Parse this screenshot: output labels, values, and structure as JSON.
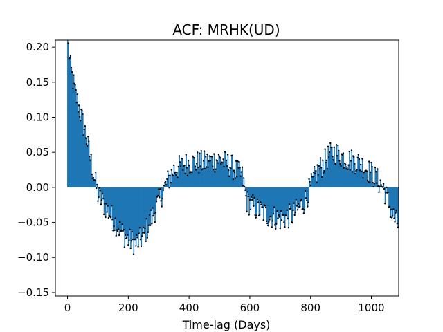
{
  "chart_data": {
    "type": "bar",
    "title": "ACF: MRHK(UD)",
    "xlabel": "Time-lag (Days)",
    "ylabel": "",
    "xlim": [
      -40,
      1090
    ],
    "ylim": [
      -0.155,
      0.21
    ],
    "x_ticks": [
      0,
      200,
      400,
      600,
      800,
      1000
    ],
    "y_ticks": [
      -0.15,
      -0.1,
      -0.05,
      0.0,
      0.05,
      0.1,
      0.15,
      0.2
    ],
    "x_tick_labels": [
      "0",
      "200",
      "400",
      "600",
      "800",
      "1000"
    ],
    "y_tick_labels": [
      "−0.15",
      "−0.10",
      "−0.05",
      "0.00",
      "0.05",
      "0.10",
      "0.15",
      "0.20"
    ],
    "grid": false,
    "legend": "none",
    "bar_color": "#1f77b4",
    "marker_color": "#000000",
    "lag_step_days": 2.5,
    "lag_start": 0,
    "lag_end": 1090,
    "envelope": [
      [
        0,
        0.21
      ],
      [
        10,
        0.17
      ],
      [
        25,
        0.135
      ],
      [
        40,
        0.11
      ],
      [
        60,
        0.075
      ],
      [
        80,
        0.03
      ],
      [
        100,
        -0.01
      ],
      [
        120,
        -0.025
      ],
      [
        150,
        -0.045
      ],
      [
        180,
        -0.065
      ],
      [
        200,
        -0.075
      ],
      [
        225,
        -0.08
      ],
      [
        250,
        -0.07
      ],
      [
        275,
        -0.045
      ],
      [
        300,
        -0.02
      ],
      [
        320,
        0.0
      ],
      [
        350,
        0.025
      ],
      [
        400,
        0.035
      ],
      [
        450,
        0.035
      ],
      [
        500,
        0.04
      ],
      [
        540,
        0.03
      ],
      [
        575,
        0.015
      ],
      [
        590,
        -0.02
      ],
      [
        620,
        -0.03
      ],
      [
        660,
        -0.04
      ],
      [
        700,
        -0.045
      ],
      [
        740,
        -0.04
      ],
      [
        780,
        -0.02
      ],
      [
        820,
        0.02
      ],
      [
        860,
        0.045
      ],
      [
        880,
        0.05
      ],
      [
        920,
        0.04
      ],
      [
        960,
        0.035
      ],
      [
        1000,
        0.02
      ],
      [
        1040,
        0.0
      ],
      [
        1070,
        -0.04
      ],
      [
        1090,
        -0.055
      ]
    ]
  }
}
